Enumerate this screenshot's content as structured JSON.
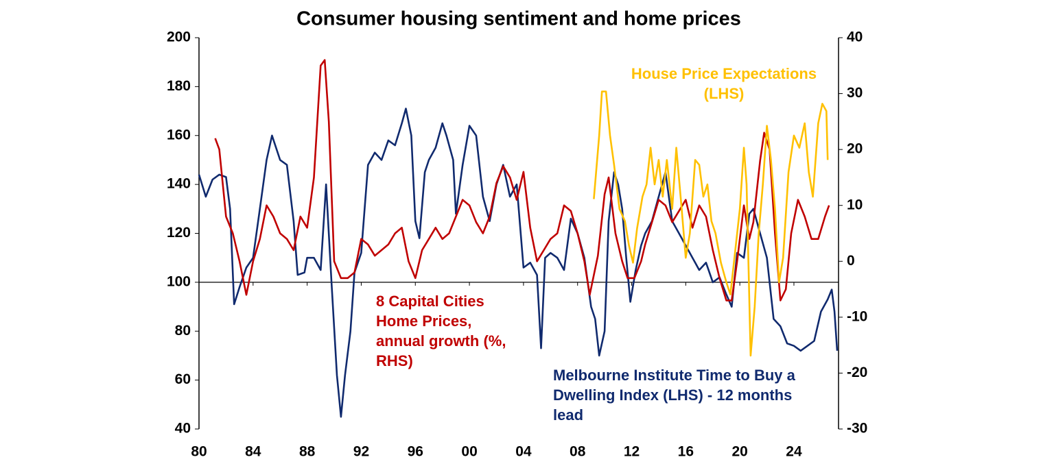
{
  "chart_data": {
    "type": "line",
    "title": "Consumer housing sentiment and home prices",
    "xlim": [
      1980,
      2027.3
    ],
    "xticks": [
      {
        "value": 1980,
        "label": "80"
      },
      {
        "value": 1984,
        "label": "84"
      },
      {
        "value": 1988,
        "label": "88"
      },
      {
        "value": 1992,
        "label": "92"
      },
      {
        "value": 1996,
        "label": "96"
      },
      {
        "value": 2000,
        "label": "00"
      },
      {
        "value": 2004,
        "label": "04"
      },
      {
        "value": 2008,
        "label": "08"
      },
      {
        "value": 2012,
        "label": "12"
      },
      {
        "value": 2016,
        "label": "16"
      },
      {
        "value": 2020,
        "label": "20"
      },
      {
        "value": 2024,
        "label": "24"
      }
    ],
    "ylim": [
      40,
      200
    ],
    "yticks": [
      40,
      60,
      80,
      100,
      120,
      140,
      160,
      180,
      200
    ],
    "y2lim": [
      -30,
      40
    ],
    "y2ticks": [
      -30,
      -20,
      -10,
      0,
      10,
      20,
      30,
      40
    ],
    "x_axis_at": 100,
    "series": [
      {
        "name": "Melbourne Institute Time to Buy a Dwelling Index (LHS) - 12 months lead",
        "color": "#102a6e",
        "axis": "y",
        "x": [
          1980,
          1980.5,
          1981,
          1981.5,
          1982,
          1982.3,
          1982.6,
          1983,
          1983.5,
          1984,
          1984.5,
          1985,
          1985.4,
          1986,
          1986.5,
          1987,
          1987.3,
          1987.8,
          1988,
          1988.5,
          1989,
          1989.4,
          1989.8,
          1990.2,
          1990.5,
          1990.8,
          1991.2,
          1991.5,
          1992,
          1992.5,
          1993,
          1993.5,
          1994,
          1994.5,
          1995,
          1995.3,
          1995.7,
          1996,
          1996.3,
          1996.7,
          1997,
          1997.5,
          1998,
          1998.3,
          1998.8,
          1999,
          1999.5,
          2000,
          2000.5,
          2001,
          2001.5,
          2002,
          2002.5,
          2003,
          2003.5,
          2004,
          2004.5,
          2005,
          2005.3,
          2005.6,
          2006,
          2006.5,
          2007,
          2007.5,
          2008,
          2008.5,
          2009,
          2009.3,
          2009.6,
          2010,
          2010.3,
          2010.7,
          2011,
          2011.3,
          2011.6,
          2011.9,
          2012.3,
          2012.7,
          2013,
          2013.5,
          2014,
          2014.5,
          2015,
          2015.5,
          2016,
          2016.5,
          2017,
          2017.5,
          2018,
          2018.5,
          2019,
          2019.4,
          2019.8,
          2020.3,
          2020.7,
          2021,
          2021.5,
          2022,
          2022.5,
          2023,
          2023.5,
          2024,
          2024.5,
          2025,
          2025.5,
          2026,
          2026.5,
          2026.8,
          2027,
          2027.2
        ],
        "values": [
          144,
          135,
          142,
          144,
          143,
          130,
          91,
          98,
          106,
          110,
          130,
          150,
          160,
          150,
          148,
          125,
          103,
          104,
          110,
          110,
          105,
          140,
          100,
          62,
          45,
          62,
          80,
          104,
          112,
          148,
          153,
          150,
          158,
          156,
          165,
          171,
          160,
          125,
          118,
          145,
          150,
          155,
          165,
          160,
          150,
          128,
          148,
          164,
          160,
          135,
          125,
          140,
          148,
          135,
          140,
          106,
          108,
          103,
          73,
          110,
          112,
          110,
          105,
          126,
          120,
          110,
          90,
          85,
          70,
          80,
          125,
          145,
          140,
          130,
          110,
          92,
          105,
          115,
          120,
          125,
          135,
          145,
          125,
          120,
          115,
          110,
          105,
          108,
          100,
          102,
          95,
          90,
          112,
          110,
          128,
          130,
          120,
          110,
          85,
          82,
          75,
          74,
          72,
          74,
          76,
          88,
          93,
          97,
          88,
          72
        ]
      },
      {
        "name": "8 Capital Cities Home Prices, annual growth (%, RHS)",
        "color": "#c00000",
        "axis": "y2",
        "x": [
          1981.2,
          1981.5,
          1982,
          1982.5,
          1983,
          1983.5,
          1984,
          1984.5,
          1985,
          1985.5,
          1986,
          1986.5,
          1987,
          1987.5,
          1988,
          1988.5,
          1989,
          1989.3,
          1989.6,
          1990,
          1990.5,
          1991,
          1991.5,
          1992,
          1992.5,
          1993,
          1993.5,
          1994,
          1994.5,
          1995,
          1995.5,
          1996,
          1996.5,
          1997,
          1997.5,
          1998,
          1998.5,
          1999,
          1999.5,
          2000,
          2000.5,
          2001,
          2001.5,
          2002,
          2002.5,
          2003,
          2003.5,
          2004,
          2004.5,
          2005,
          2005.5,
          2006,
          2006.5,
          2007,
          2007.5,
          2008,
          2008.5,
          2008.9,
          2009.5,
          2010,
          2010.3,
          2010.8,
          2011.3,
          2011.7,
          2012.2,
          2012.7,
          2013,
          2013.5,
          2014,
          2014.5,
          2015,
          2015.5,
          2016,
          2016.5,
          2017,
          2017.5,
          2018,
          2018.5,
          2019,
          2019.4,
          2019.8,
          2020.3,
          2020.7,
          2021,
          2021.5,
          2021.8,
          2022.2,
          2022.6,
          2023,
          2023.4,
          2023.8,
          2024.3,
          2024.8,
          2025.3,
          2025.8,
          2026.3,
          2026.6
        ],
        "values": [
          22,
          20,
          8,
          5,
          0,
          -6,
          0,
          4,
          10,
          8,
          5,
          4,
          2,
          8,
          6,
          15,
          35,
          36,
          25,
          0,
          -3,
          -3,
          -2,
          4,
          3,
          1,
          2,
          3,
          5,
          6,
          0,
          -3,
          2,
          4,
          6,
          4,
          5,
          8,
          11,
          10,
          7,
          5,
          8,
          14,
          17,
          15,
          11,
          16,
          6,
          0,
          2,
          4,
          5,
          10,
          9,
          5,
          0,
          -6,
          1,
          12,
          15,
          5,
          0,
          -3,
          -3,
          0,
          3,
          7,
          11,
          10,
          7,
          9,
          11,
          6,
          10,
          8,
          2,
          -3,
          -7,
          -7,
          0,
          10,
          4,
          7,
          18,
          23,
          20,
          5,
          -7,
          -5,
          5,
          11,
          8,
          4,
          4,
          8,
          10
        ]
      },
      {
        "name": "House Price Expectations (LHS)",
        "color": "#ffc000",
        "axis": "y",
        "x": [
          2009.2,
          2009.6,
          2009.8,
          2010.1,
          2010.4,
          2010.7,
          2011.1,
          2011.5,
          2011.8,
          2012.1,
          2012.4,
          2012.8,
          2013.1,
          2013.4,
          2013.7,
          2014,
          2014.3,
          2014.6,
          2015,
          2015.3,
          2015.7,
          2016,
          2016.3,
          2016.7,
          2017,
          2017.3,
          2017.6,
          2017.9,
          2018.2,
          2018.6,
          2019,
          2019.3,
          2019.6,
          2020,
          2020.3,
          2020.5,
          2020.8,
          2021.1,
          2021.4,
          2021.7,
          2022,
          2022.3,
          2022.6,
          2022.9,
          2023.2,
          2023.6,
          2024,
          2024.4,
          2024.8,
          2025.1,
          2025.4,
          2025.8,
          2026.1,
          2026.4,
          2026.5
        ],
        "values": [
          134,
          160,
          178,
          178,
          160,
          148,
          130,
          125,
          115,
          108,
          122,
          135,
          140,
          155,
          140,
          150,
          135,
          150,
          130,
          155,
          130,
          110,
          120,
          150,
          148,
          135,
          140,
          125,
          120,
          108,
          100,
          95,
          110,
          130,
          155,
          140,
          70,
          90,
          120,
          140,
          164,
          150,
          130,
          100,
          110,
          145,
          160,
          155,
          165,
          145,
          135,
          165,
          173,
          170,
          150
        ]
      }
    ]
  }
}
